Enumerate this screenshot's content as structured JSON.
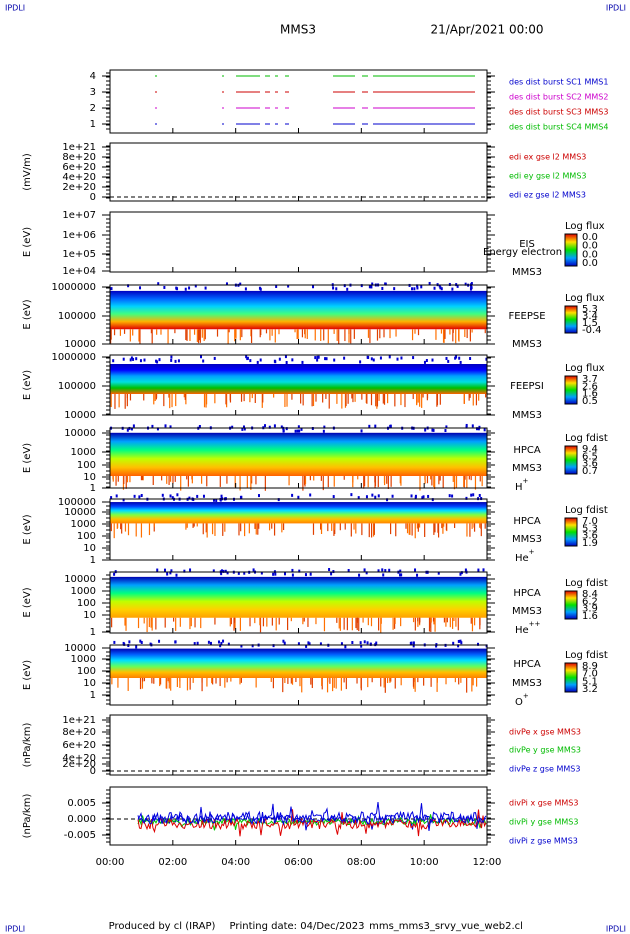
{
  "header": {
    "title": "MMS3",
    "date": "21/Apr/2021 00:00",
    "corner_marks": [
      "IPDLI",
      "IPDLI",
      "IPDLI",
      "IPDLI"
    ]
  },
  "panels": [
    {
      "y_label": "",
      "y_ticks": [
        "4",
        "3",
        "2",
        "1"
      ],
      "legend": [
        {
          "text": "des dist burst SC1 MMS1",
          "color": "#0000cc"
        },
        {
          "text": "des dist burst SC2 MMS2",
          "color": "#cc00cc"
        },
        {
          "text": "des dist burst SC3 MMS3",
          "color": "#cc0000"
        },
        {
          "text": "des dist burst SC4 MMS4",
          "color": "#00bb00"
        }
      ]
    },
    {
      "y_label": "(mV/m)",
      "y_ticks": [
        "1e+21",
        "8e+20",
        "6e+20",
        "4e+20",
        "2e+20",
        "0"
      ],
      "legend": [
        {
          "text": "edi ex gse l2 MMS3",
          "color": "#cc0000"
        },
        {
          "text": "edi ey gse l2 MMS3",
          "color": "#00bb00"
        },
        {
          "text": "edi ez gse l2 MMS3",
          "color": "#0000cc"
        }
      ]
    },
    {
      "y_label": "E (eV)",
      "y_ticks": [
        "1e+07",
        "1e+06",
        "1e+05",
        "1e+04"
      ],
      "instrument": [
        "EIS",
        "MMS3"
      ],
      "note": "Energy electron to",
      "colorbar": {
        "title": "Log flux",
        "labels": [
          "0.0",
          "0.0",
          "0.0",
          "0.0"
        ]
      }
    },
    {
      "y_label": "E (eV)",
      "y_ticks": [
        "1000000",
        "100000",
        "10000"
      ],
      "instrument": [
        "FEEPSE",
        "MMS3"
      ],
      "colorbar": {
        "title": "Log flux",
        "labels": [
          "5.3",
          "3.4",
          "1.5",
          "-0.4"
        ]
      }
    },
    {
      "y_label": "E (eV)",
      "y_ticks": [
        "1000000",
        "100000",
        "10000"
      ],
      "instrument": [
        "FEEPSI",
        "MMS3"
      ],
      "colorbar": {
        "title": "Log flux",
        "labels": [
          "3.7",
          "2.6",
          "1.6",
          "0.5"
        ]
      }
    },
    {
      "y_label": "E (eV)",
      "y_ticks": [
        "10000",
        "1000",
        "100",
        "10",
        "1"
      ],
      "instrument": [
        "HPCA",
        "MMS3"
      ],
      "species": {
        "base": "H",
        "charge": "+"
      },
      "colorbar": {
        "title": "Log fdist",
        "labels": [
          "9.4",
          "6.5",
          "3.6",
          "0.7"
        ]
      }
    },
    {
      "y_label": "E (eV)",
      "y_ticks": [
        "100000",
        "10000",
        "1000",
        "100",
        "10",
        "1"
      ],
      "instrument": [
        "HPCA",
        "MMS3"
      ],
      "species": {
        "base": "He",
        "charge": "+"
      },
      "colorbar": {
        "title": "Log fdist",
        "labels": [
          "7.0",
          "5.3",
          "3.6",
          "1.9"
        ]
      }
    },
    {
      "y_label": "E (eV)",
      "y_ticks": [
        "10000",
        "1000",
        "100",
        "10",
        "1"
      ],
      "instrument": [
        "HPCA",
        "MMS3"
      ],
      "species": {
        "base": "He",
        "charge": "++"
      },
      "colorbar": {
        "title": "Log fdist",
        "labels": [
          "8.4",
          "6.2",
          "3.9",
          "1.6"
        ]
      }
    },
    {
      "y_label": "E (eV)",
      "y_ticks": [
        "10000",
        "1000",
        "100",
        "10",
        "1"
      ],
      "instrument": [
        "HPCA",
        "MMS3"
      ],
      "species": {
        "base": "O",
        "charge": "+"
      },
      "colorbar": {
        "title": "Log fdist",
        "labels": [
          "8.9",
          "7.0",
          "5.1",
          "3.2"
        ]
      }
    },
    {
      "y_label": "(nPa/km)",
      "y_ticks": [
        "1e+21",
        "8e+20",
        "6e+20",
        "4e+20",
        "2e+20",
        "0"
      ],
      "legend": [
        {
          "text": "divPe x gse MMS3",
          "color": "#cc0000"
        },
        {
          "text": "divPe y gse MMS3",
          "color": "#00bb00"
        },
        {
          "text": "divPe z gse MMS3",
          "color": "#0000cc"
        }
      ]
    },
    {
      "y_label": "(nPa/km)",
      "y_ticks": [
        "0.005",
        "0.000",
        "-0.005"
      ],
      "legend": [
        {
          "text": "divPi x gse MMS3",
          "color": "#cc0000"
        },
        {
          "text": "divPi y gse MMS3",
          "color": "#00bb00"
        },
        {
          "text": "divPi z gse MMS3",
          "color": "#0000cc"
        }
      ]
    }
  ],
  "x_ticks": [
    "00:00",
    "02:00",
    "04:00",
    "06:00",
    "08:00",
    "10:00",
    "12:00"
  ],
  "footer": [
    "Produced by cl (IRAP)",
    "Printing date: 04/Dec/2023",
    "mms_mms3_srvy_vue_web2.cl"
  ]
}
